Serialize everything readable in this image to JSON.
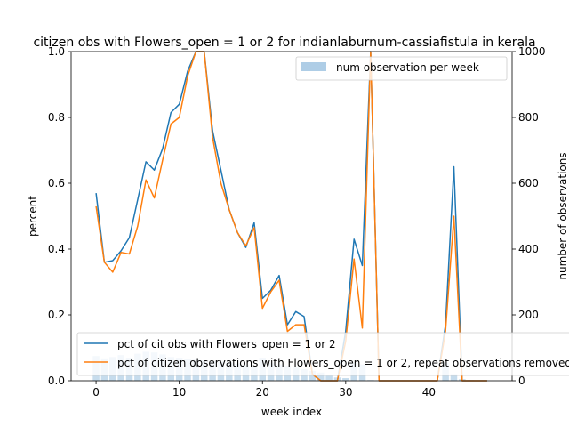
{
  "chart_data": {
    "type": "line",
    "title": "citizen obs with Flowers_open = 1 or 2 for indianlaburnum-cassiafistula in kerala",
    "xlabel": "week index",
    "ylabel": "percent",
    "y2label": "number of observations",
    "xlim": [
      -3,
      50
    ],
    "ylim": [
      0,
      1.0
    ],
    "y2lim": [
      0,
      1000
    ],
    "x_ticks": [
      "0",
      "10",
      "20",
      "30",
      "40"
    ],
    "y_ticks": [
      "0.0",
      "0.2",
      "0.4",
      "0.6",
      "0.8",
      "1.0"
    ],
    "y2_ticks": [
      "0",
      "200",
      "400",
      "600",
      "800",
      "1000"
    ],
    "bars": {
      "name": "num observation per week",
      "color": "#aecde6",
      "x": [
        0,
        1,
        2,
        3,
        4,
        5,
        6,
        7,
        8,
        9,
        10,
        11,
        12,
        13,
        14,
        15,
        16,
        17,
        18,
        19,
        20,
        21,
        22,
        23,
        24,
        25,
        26,
        27,
        28,
        29,
        30,
        31,
        32,
        33,
        34,
        35,
        36,
        37,
        38,
        39,
        40,
        41,
        42,
        43,
        44,
        45,
        46,
        47
      ],
      "values": [
        75,
        68,
        72,
        78,
        70,
        82,
        88,
        86,
        80,
        72,
        70,
        66,
        64,
        62,
        60,
        58,
        56,
        52,
        48,
        42,
        70,
        55,
        50,
        45,
        40,
        35,
        30,
        25,
        15,
        10,
        8,
        55,
        50,
        2,
        1,
        0,
        0,
        0,
        0,
        0,
        0,
        0,
        55,
        20,
        5,
        2,
        0,
        0
      ]
    },
    "series": [
      {
        "name": "pct of cit obs with Flowers_open = 1 or 2",
        "color": "#1f77b4",
        "x": [
          0,
          1,
          2,
          3,
          4,
          5,
          6,
          7,
          8,
          9,
          10,
          11,
          12,
          13,
          14,
          15,
          16,
          17,
          18,
          19,
          20,
          21,
          22,
          23,
          24,
          25,
          26,
          27,
          28,
          29,
          30,
          31,
          32,
          33,
          34,
          35,
          36,
          37,
          38,
          39,
          40,
          41,
          42,
          43,
          44,
          45,
          46,
          47
        ],
        "values": [
          0.57,
          0.36,
          0.365,
          0.395,
          0.435,
          0.55,
          0.665,
          0.64,
          0.705,
          0.815,
          0.84,
          0.94,
          1.0,
          1.0,
          0.76,
          0.64,
          0.52,
          0.45,
          0.405,
          0.48,
          0.25,
          0.275,
          0.32,
          0.17,
          0.21,
          0.195,
          0.02,
          0.0,
          0.0,
          0.0,
          0.15,
          0.43,
          0.35,
          1.0,
          0.0,
          0.0,
          0.0,
          0.0,
          0.0,
          0.0,
          0.0,
          0.0,
          0.17,
          0.65,
          0.0,
          0.0,
          0.0,
          0.0
        ]
      },
      {
        "name": "pct of citizen observations with Flowers_open = 1 or 2, repeat observations removed",
        "color": "#ff7f0e",
        "x": [
          0,
          1,
          2,
          3,
          4,
          5,
          6,
          7,
          8,
          9,
          10,
          11,
          12,
          13,
          14,
          15,
          16,
          17,
          18,
          19,
          20,
          21,
          22,
          23,
          24,
          25,
          26,
          27,
          28,
          29,
          30,
          31,
          32,
          33,
          34,
          35,
          36,
          37,
          38,
          39,
          40,
          41,
          42,
          43,
          44,
          45,
          46,
          47
        ],
        "values": [
          0.53,
          0.36,
          0.33,
          0.39,
          0.385,
          0.47,
          0.61,
          0.555,
          0.67,
          0.78,
          0.8,
          0.925,
          1.0,
          1.0,
          0.74,
          0.6,
          0.52,
          0.45,
          0.41,
          0.465,
          0.22,
          0.27,
          0.305,
          0.15,
          0.17,
          0.17,
          0.02,
          0.0,
          0.0,
          0.0,
          0.12,
          0.37,
          0.16,
          1.0,
          0.0,
          0.0,
          0.0,
          0.0,
          0.0,
          0.0,
          0.0,
          0.0,
          0.15,
          0.5,
          0.0,
          0.0,
          0.0,
          0.0
        ]
      }
    ],
    "legend_top": "top-right",
    "legend_bottom": "bottom"
  }
}
